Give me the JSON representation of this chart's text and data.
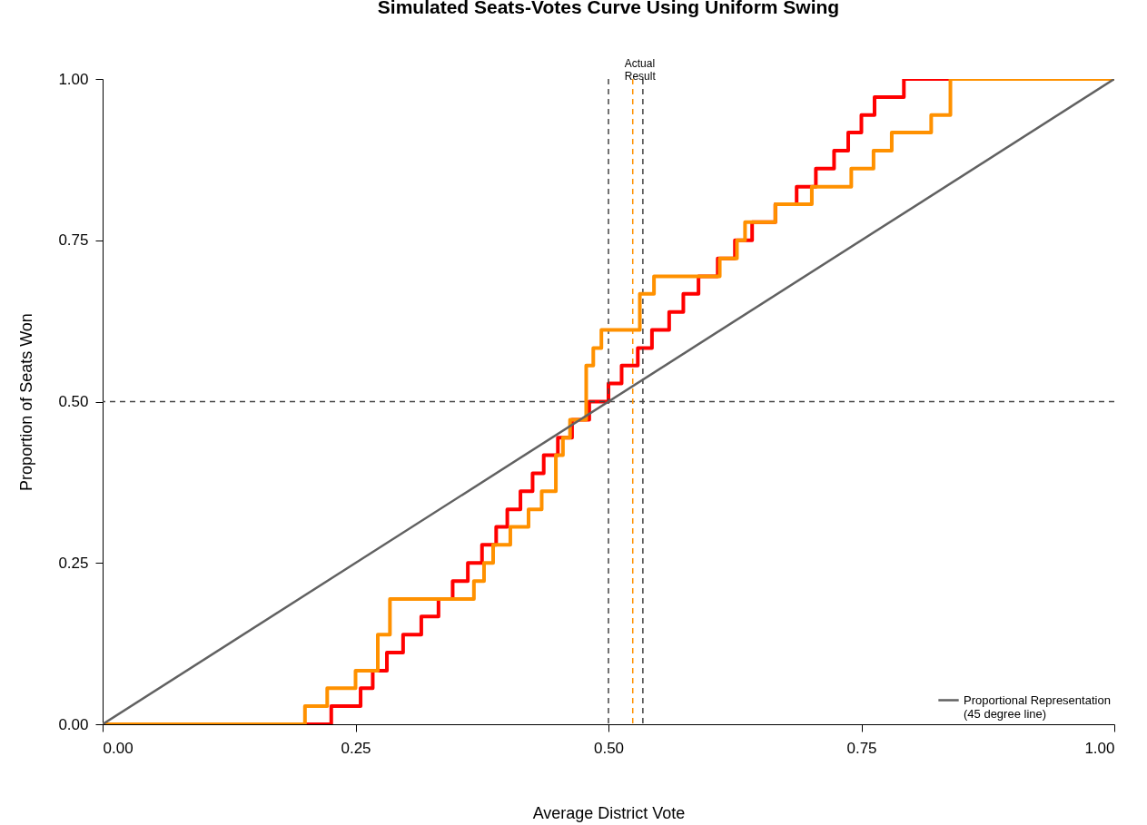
{
  "chart_data": {
    "type": "step",
    "title": "Simulated Seats-Votes Curve Using Uniform Swing",
    "xlabel": "Average District Vote",
    "ylabel": "Proportion of Seats Won",
    "xlim": [
      0,
      1
    ],
    "ylim": [
      0,
      1
    ],
    "xticks": [
      {
        "value": 0,
        "label": "0.00"
      },
      {
        "value": 0.25,
        "label": "0.25"
      },
      {
        "value": 0.5,
        "label": "0.50"
      },
      {
        "value": 0.75,
        "label": "0.75"
      },
      {
        "value": 1,
        "label": "1.00"
      }
    ],
    "yticks": [
      {
        "value": 0,
        "label": "0.00"
      },
      {
        "value": 0.25,
        "label": "0.25"
      },
      {
        "value": 0.5,
        "label": "0.50"
      },
      {
        "value": 0.75,
        "label": "0.75"
      },
      {
        "value": 1,
        "label": "1.00"
      }
    ],
    "series": [
      {
        "color": "#ff0000",
        "x": [
          0,
          0.226,
          0.255,
          0.267,
          0.281,
          0.297,
          0.315,
          0.332,
          0.346,
          0.361,
          0.375,
          0.389,
          0.4,
          0.413,
          0.425,
          0.436,
          0.45,
          0.464,
          0.481,
          0.5,
          0.513,
          0.529,
          0.543,
          0.56,
          0.574,
          0.589,
          0.608,
          0.625,
          0.642,
          0.665,
          0.686,
          0.705,
          0.723,
          0.737,
          0.75,
          0.763,
          0.792,
          1
        ],
        "values": [
          0,
          0.028,
          0.056,
          0.083,
          0.111,
          0.139,
          0.167,
          0.194,
          0.222,
          0.25,
          0.278,
          0.306,
          0.333,
          0.361,
          0.389,
          0.417,
          0.444,
          0.472,
          0.5,
          0.528,
          0.556,
          0.583,
          0.611,
          0.639,
          0.667,
          0.694,
          0.722,
          0.75,
          0.778,
          0.806,
          0.833,
          0.861,
          0.889,
          0.917,
          0.944,
          0.972,
          1,
          1
        ]
      },
      {
        "color": "#ff9100",
        "x": [
          0,
          0.2,
          0.222,
          0.25,
          0.272,
          0.284,
          0.367,
          0.377,
          0.386,
          0.403,
          0.421,
          0.434,
          0.448,
          0.455,
          0.462,
          0.478,
          0.485,
          0.493,
          0.531,
          0.545,
          0.61,
          0.627,
          0.635,
          0.665,
          0.701,
          0.74,
          0.762,
          0.78,
          0.819,
          0.838,
          1
        ],
        "values": [
          0,
          0.028,
          0.056,
          0.083,
          0.139,
          0.194,
          0.222,
          0.25,
          0.278,
          0.306,
          0.333,
          0.361,
          0.417,
          0.444,
          0.472,
          0.556,
          0.583,
          0.611,
          0.667,
          0.694,
          0.722,
          0.75,
          0.778,
          0.806,
          0.833,
          0.861,
          0.889,
          0.917,
          0.944,
          1,
          1
        ]
      },
      {
        "type": "line",
        "name": "Proportional Representation (45 degree line)",
        "color": "#616161",
        "x": [
          0,
          1
        ],
        "values": [
          0,
          1
        ]
      }
    ],
    "ref_lines": [
      {
        "axis": "x",
        "value": 0.5,
        "color": "#444444",
        "line_style": "dashed"
      },
      {
        "axis": "x",
        "value": 0.534,
        "color": "#444444",
        "line_style": "dashed"
      },
      {
        "axis": "x",
        "value": 0.524,
        "color": "#ff9100",
        "line_style": "dashed",
        "label": "Actual Result"
      },
      {
        "axis": "y",
        "value": 0.5,
        "color": "#444444",
        "line_style": "dashed"
      }
    ],
    "legend": "bottom right"
  }
}
